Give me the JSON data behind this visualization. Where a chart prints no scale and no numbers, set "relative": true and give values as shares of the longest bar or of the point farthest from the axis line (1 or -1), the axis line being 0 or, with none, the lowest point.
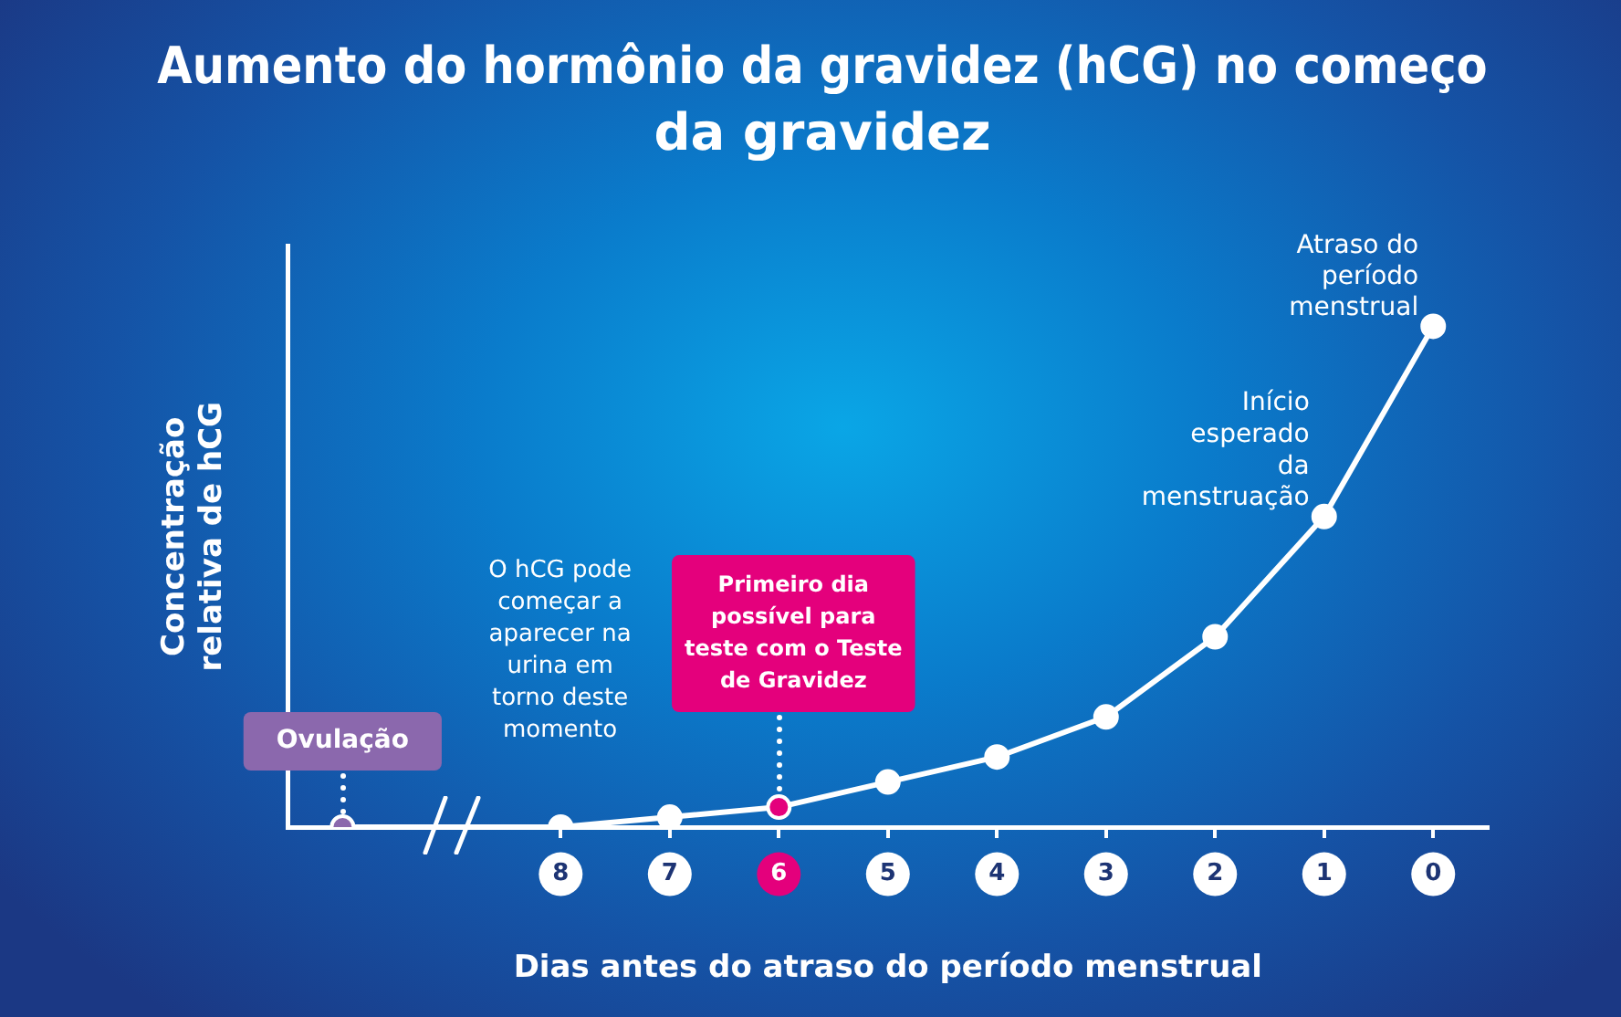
{
  "chart_data": {
    "type": "line",
    "title": "Aumento do hormônio da gravidez (hCG) no começo da gravidez",
    "xlabel": "Dias antes do atraso do período menstrual",
    "ylabel": "Concentração relativa de hCG",
    "categories": [
      null,
      null,
      "8",
      "7",
      "6",
      "5",
      "4",
      "3",
      "2",
      "1",
      "0"
    ],
    "series": [
      {
        "color": "#ffffff",
        "colors": [
          "#8b68ad",
          null,
          "#ffffff",
          "#ffffff",
          "#e4007c",
          "#ffffff",
          "#ffffff",
          "#ffffff",
          "#ffffff",
          "#ffffff",
          "#ffffff"
        ],
        "values": [
          0,
          null,
          0,
          0.02,
          0.04,
          0.09,
          0.14,
          0.22,
          0.38,
          0.62,
          1
        ]
      }
    ],
    "relative": true,
    "marker": "circle",
    "tick_labels": "x",
    "grid": false,
    "legend": false,
    "annotations": [
      {
        "text": "Ovulação",
        "y": 0
      },
      "O hCG pode começar a aparecer na urina em torno deste momento",
      {
        "text": "Primeiro dia possível para teste com o Teste de Gravidez",
        "x": "6",
        "y": 0.04
      },
      {
        "text": "Início esperado da menstruação",
        "x": "1",
        "y": 0.62
      },
      {
        "text": "Atraso do período menstrual",
        "x": "0",
        "y": 1
      }
    ]
  }
}
